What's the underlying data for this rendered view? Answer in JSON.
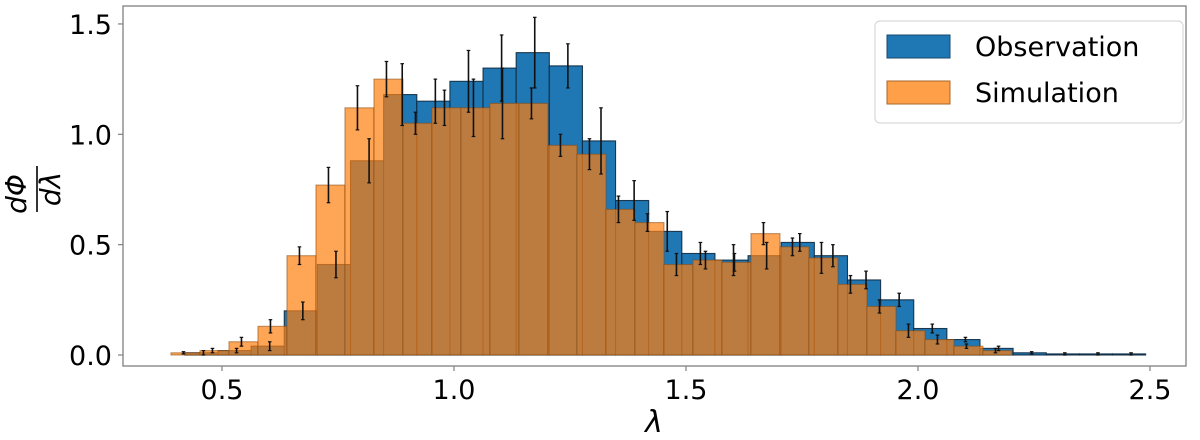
{
  "chart_data": {
    "type": "bar",
    "subtype": "overlaid-histogram-with-error-bars",
    "title": "",
    "xlabel": "λ",
    "ylabel": "dΦ/dλ",
    "xlim": [
      0.33,
      2.61
    ],
    "ylim": [
      -0.06,
      1.57
    ],
    "x_ticks": [
      0.5,
      1.0,
      1.5,
      2.0,
      2.5
    ],
    "x_tick_labels": [
      "0.5",
      "1.0",
      "1.5",
      "2.0",
      "2.5"
    ],
    "y_ticks": [
      0.0,
      0.5,
      1.0,
      1.5
    ],
    "y_tick_labels": [
      "0.0",
      "0.5",
      "1.0",
      "1.5"
    ],
    "grid": false,
    "legend_position": "upper right",
    "series": [
      {
        "name": "Observation",
        "color": "#1f77b4",
        "alpha": 1.0,
        "bin_start": 0.42,
        "bin_width": 0.0714,
        "values": [
          0.01,
          0.02,
          0.04,
          0.2,
          0.41,
          0.88,
          1.18,
          1.15,
          1.24,
          1.3,
          1.37,
          1.31,
          0.97,
          0.7,
          0.56,
          0.46,
          0.43,
          0.45,
          0.51,
          0.45,
          0.34,
          0.25,
          0.12,
          0.07,
          0.03,
          0.01,
          0.005,
          0.005,
          0.005
        ],
        "errors": [
          0.01,
          0.01,
          0.02,
          0.04,
          0.06,
          0.1,
          0.14,
          0.1,
          0.14,
          0.15,
          0.16,
          0.1,
          0.15,
          0.09,
          0.09,
          0.05,
          0.07,
          0.06,
          0.04,
          0.05,
          0.04,
          0.03,
          0.02,
          0.01,
          0.01,
          0.005,
          0.005,
          0.005,
          0.005
        ]
      },
      {
        "name": "Simulation",
        "color": "#ff7f0e",
        "alpha": 0.7,
        "bin_start": 0.39,
        "bin_width": 0.0625,
        "values": [
          0.01,
          0.02,
          0.06,
          0.13,
          0.45,
          0.77,
          1.12,
          1.25,
          1.05,
          1.12,
          1.12,
          1.14,
          1.14,
          0.95,
          0.91,
          0.66,
          0.6,
          0.41,
          0.43,
          0.42,
          0.55,
          0.49,
          0.44,
          0.32,
          0.22,
          0.11,
          0.07,
          0.04,
          0.02
        ],
        "errors": [
          0.005,
          0.01,
          0.02,
          0.03,
          0.04,
          0.08,
          0.1,
          0.08,
          0.05,
          0.08,
          0.13,
          0.16,
          0.07,
          0.05,
          0.07,
          0.06,
          0.04,
          0.05,
          0.04,
          0.04,
          0.05,
          0.04,
          0.07,
          0.04,
          0.03,
          0.03,
          0.02,
          0.01,
          0.01
        ]
      }
    ]
  },
  "legend": {
    "items": [
      {
        "label": "Observation",
        "color": "#1f77b4"
      },
      {
        "label": "Simulation",
        "color": "#ff9f48"
      }
    ]
  },
  "axes": {
    "xlabel": "λ",
    "ylabel_numerator": "dΦ",
    "ylabel_denominator": "dλ"
  }
}
